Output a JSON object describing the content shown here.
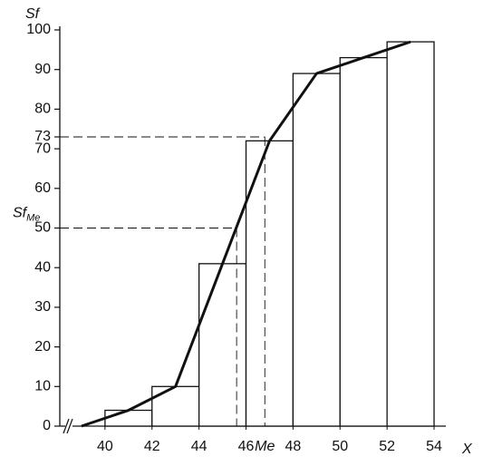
{
  "chart_data": {
    "type": "histogram",
    "y_label": "Sf",
    "x_label": "X",
    "bins": [
      40,
      42,
      44,
      46,
      48,
      50,
      52,
      54
    ],
    "values": [
      4,
      10,
      41,
      72,
      89,
      93,
      97
    ],
    "color": "#ffffff",
    "line": {
      "x": [
        39,
        41,
        43,
        45,
        47,
        49,
        51,
        53
      ],
      "values": [
        0,
        4,
        10,
        41,
        72,
        89,
        93,
        97
      ],
      "color": "#111111"
    },
    "xlim": [
      38,
      54.5
    ],
    "ylim": [
      0,
      100
    ],
    "xticks": [
      40,
      42,
      44,
      46,
      48,
      50,
      52,
      54
    ],
    "yticks": [
      0,
      10,
      20,
      30,
      40,
      50,
      60,
      70,
      73,
      80,
      90,
      100
    ],
    "annotations": [
      {
        "text": "Sf",
        "subscript": "Me",
        "x": 45.6,
        "y": 50
      },
      {
        "text": "Me",
        "x": 46.8,
        "y": 73
      }
    ]
  }
}
